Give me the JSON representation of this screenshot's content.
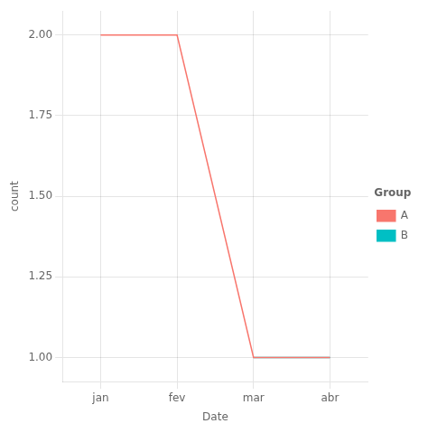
{
  "chart_data": {
    "type": "line",
    "categories": [
      "jan",
      "fev",
      "mar",
      "abr"
    ],
    "series": [
      {
        "name": "A",
        "color": "#F8766D",
        "values": [
          2.0,
          2.0,
          1.0,
          1.0
        ]
      },
      {
        "name": "B",
        "color": "#00BFC4",
        "values": [
          null,
          null,
          1.0,
          1.0
        ]
      }
    ],
    "xlabel": "Date",
    "ylabel": "count",
    "legend_title": "Group",
    "legend": "right",
    "ylim": [
      0.925,
      2.075
    ],
    "yticks": [
      {
        "value": 1.0,
        "label": "1.00"
      },
      {
        "value": 1.25,
        "label": "1.25"
      },
      {
        "value": 1.5,
        "label": "1.50"
      },
      {
        "value": 1.75,
        "label": "1.75"
      },
      {
        "value": 2.0,
        "label": "2.00"
      }
    ],
    "grid": true
  }
}
